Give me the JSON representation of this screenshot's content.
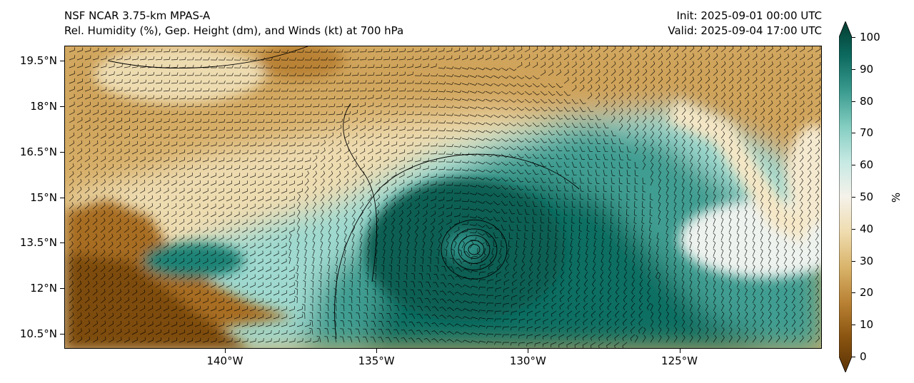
{
  "title": {
    "left_line1": "NSF NCAR 3.75-km MPAS-A",
    "left_line2": "Rel. Humidity (%), Gep. Height (dm), and Winds (kt) at 700 hPa",
    "right_line1": "Init: 2025-09-01 00:00 UTC",
    "right_line2": "Valid: 2025-09-04 17:00 UTC"
  },
  "map": {
    "lat_ticks": [
      {
        "value": 19.5,
        "label": "19.5°N"
      },
      {
        "value": 18.0,
        "label": "18°N"
      },
      {
        "value": 16.5,
        "label": "16.5°N"
      },
      {
        "value": 15.0,
        "label": "15°N"
      },
      {
        "value": 13.5,
        "label": "13.5°N"
      },
      {
        "value": 12.0,
        "label": "12°N"
      },
      {
        "value": 10.5,
        "label": "10.5°N"
      }
    ],
    "lon_ticks": [
      {
        "value": -140,
        "label": "140°W"
      },
      {
        "value": -135,
        "label": "135°W"
      },
      {
        "value": -130,
        "label": "130°W"
      },
      {
        "value": -125,
        "label": "125°W"
      }
    ],
    "lon_range": [
      -145.3,
      -120.3
    ],
    "lat_range": [
      10.0,
      20.0
    ],
    "cyclone_center": {
      "lon": -131.8,
      "lat": 13.3
    }
  },
  "colorbar": {
    "unit": "%",
    "ticks": [
      "0",
      "10",
      "20",
      "30",
      "40",
      "50",
      "60",
      "70",
      "80",
      "90",
      "100"
    ],
    "range": [
      0,
      100
    ],
    "colors": [
      "#5b3305",
      "#8a5410",
      "#b98234",
      "#d9b46b",
      "#efdcaf",
      "#f5f2ea",
      "#c6e9e3",
      "#84cdc1",
      "#3c9c90",
      "#0d6b60",
      "#043c30"
    ]
  }
}
